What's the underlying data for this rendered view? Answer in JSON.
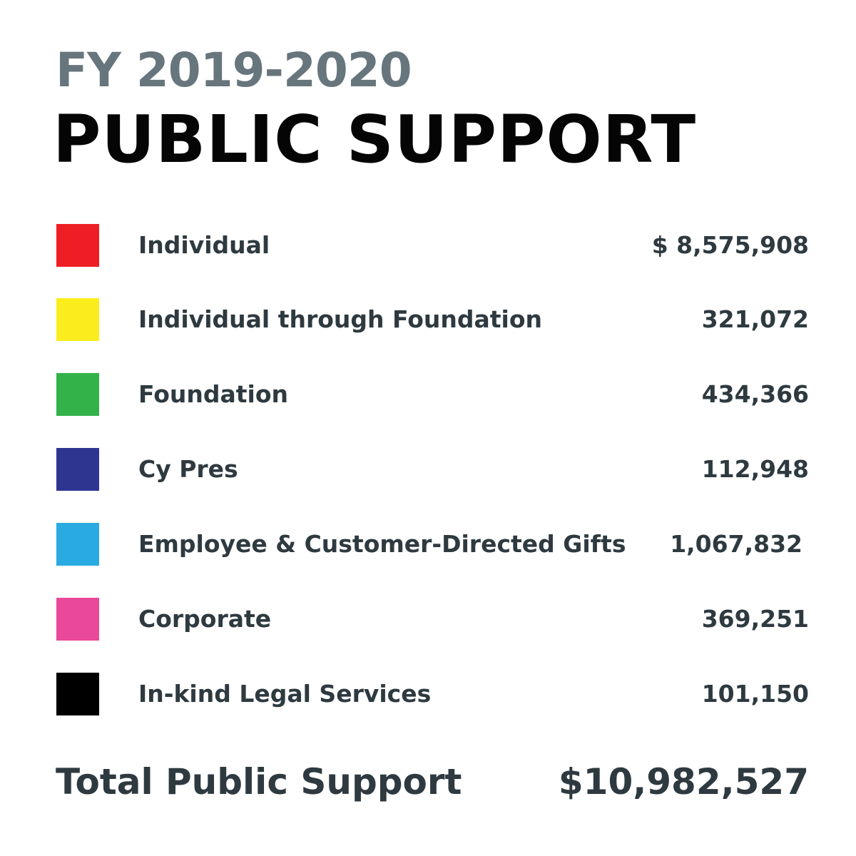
{
  "header": {
    "subtitle": "FY 2019-2020",
    "title": "PUBLIC SUPPORT"
  },
  "items": [
    {
      "label": "Individual",
      "amount": "$ 8,575,908",
      "color": "#ed1f24"
    },
    {
      "label": "Individual through Foundation",
      "amount": "321,072",
      "color": "#fbed1d"
    },
    {
      "label": "Foundation",
      "amount": "434,366",
      "color": "#34b24a"
    },
    {
      "label": "Cy Pres",
      "amount": "112,948",
      "color": "#2e3591"
    },
    {
      "label": "Employee & Customer-Directed Gifts",
      "amount": "1,067,832",
      "color": "#29aae1"
    },
    {
      "label": "Corporate",
      "amount": "369,251",
      "color": "#ea4899"
    },
    {
      "label": "In-kind Legal Services",
      "amount": "101,150",
      "color": "#000000"
    }
  ],
  "total": {
    "label": "Total Public Support",
    "amount": "$10,982,527"
  }
}
